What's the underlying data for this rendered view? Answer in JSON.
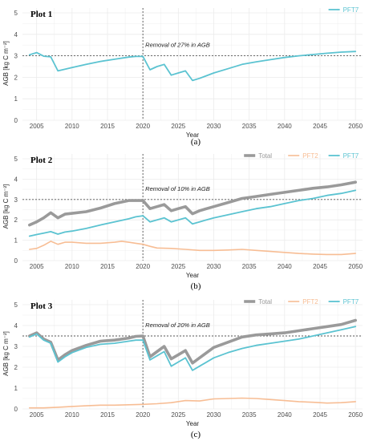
{
  "colors": {
    "Total": "#9a9a9a",
    "PFT2": "#f7bd94",
    "PFT7": "#5bc3d1",
    "grid": "#ebebeb",
    "ref": "#555555"
  },
  "chart_data": [
    {
      "type": "line",
      "title": "Plot 1",
      "caption": "(a)",
      "annotation": "Removal of 27% in AGB",
      "xlabel": "Year",
      "ylabel": "AGB [kg C m⁻²]",
      "xlim": [
        2003,
        2051
      ],
      "ylim": [
        0,
        5
      ],
      "xticks": [
        2005,
        2010,
        2015,
        2020,
        2025,
        2030,
        2035,
        2040,
        2045,
        2050
      ],
      "yticks": [
        0,
        1,
        2,
        3,
        4,
        5
      ],
      "hline": 3.0,
      "vline": 2020,
      "legend": "top-right",
      "series": [
        {
          "name": "PFT7",
          "x": [
            2004,
            2005,
            2006,
            2007,
            2008,
            2010,
            2012,
            2014,
            2016,
            2018,
            2019,
            2020,
            2021,
            2022,
            2023,
            2024,
            2025,
            2026,
            2027,
            2028,
            2030,
            2032,
            2034,
            2036,
            2038,
            2040,
            2042,
            2044,
            2046,
            2048,
            2050
          ],
          "y": [
            3.05,
            3.15,
            2.98,
            2.95,
            2.3,
            2.45,
            2.6,
            2.74,
            2.84,
            2.94,
            2.97,
            2.97,
            2.35,
            2.5,
            2.6,
            2.1,
            2.2,
            2.3,
            1.85,
            1.95,
            2.2,
            2.4,
            2.6,
            2.72,
            2.82,
            2.92,
            3.0,
            3.06,
            3.12,
            3.17,
            3.2
          ]
        }
      ]
    },
    {
      "type": "line",
      "title": "Plot 2",
      "caption": "(b)",
      "annotation": "Removal of 10% in AGB",
      "xlabel": "Year",
      "ylabel": "AGB [kg C m⁻²]",
      "xlim": [
        2003,
        2051
      ],
      "ylim": [
        0,
        5
      ],
      "xticks": [
        2005,
        2010,
        2015,
        2020,
        2025,
        2030,
        2035,
        2040,
        2045,
        2050
      ],
      "yticks": [
        0,
        1,
        2,
        3,
        4,
        5
      ],
      "hline": 3.0,
      "vline": 2020,
      "legend": "top-right",
      "series": [
        {
          "name": "Total",
          "x": [
            2004,
            2005,
            2006,
            2007,
            2008,
            2009,
            2010,
            2012,
            2014,
            2016,
            2018,
            2019,
            2020,
            2021,
            2022,
            2023,
            2024,
            2025,
            2026,
            2027,
            2028,
            2030,
            2032,
            2034,
            2036,
            2038,
            2040,
            2042,
            2044,
            2046,
            2048,
            2050
          ],
          "y": [
            1.75,
            1.9,
            2.1,
            2.35,
            2.1,
            2.28,
            2.32,
            2.4,
            2.58,
            2.8,
            2.95,
            2.95,
            2.95,
            2.55,
            2.65,
            2.75,
            2.45,
            2.55,
            2.65,
            2.3,
            2.45,
            2.65,
            2.85,
            3.05,
            3.15,
            3.25,
            3.35,
            3.45,
            3.55,
            3.62,
            3.72,
            3.85
          ]
        },
        {
          "name": "PFT2",
          "x": [
            2004,
            2005,
            2006,
            2007,
            2008,
            2009,
            2010,
            2012,
            2014,
            2016,
            2017,
            2018,
            2019,
            2020,
            2021,
            2022,
            2024,
            2026,
            2028,
            2030,
            2032,
            2034,
            2036,
            2038,
            2040,
            2042,
            2044,
            2046,
            2048,
            2050
          ],
          "y": [
            0.55,
            0.6,
            0.75,
            0.95,
            0.8,
            0.9,
            0.9,
            0.85,
            0.85,
            0.9,
            0.95,
            0.9,
            0.85,
            0.8,
            0.7,
            0.62,
            0.6,
            0.55,
            0.5,
            0.5,
            0.52,
            0.55,
            0.5,
            0.45,
            0.4,
            0.35,
            0.32,
            0.3,
            0.3,
            0.35
          ]
        },
        {
          "name": "PFT7",
          "x": [
            2004,
            2005,
            2006,
            2007,
            2008,
            2009,
            2010,
            2012,
            2014,
            2016,
            2018,
            2019,
            2020,
            2021,
            2022,
            2023,
            2024,
            2025,
            2026,
            2027,
            2028,
            2030,
            2032,
            2034,
            2036,
            2038,
            2040,
            2042,
            2044,
            2046,
            2048,
            2050
          ],
          "y": [
            1.2,
            1.28,
            1.35,
            1.42,
            1.3,
            1.4,
            1.45,
            1.58,
            1.75,
            1.9,
            2.05,
            2.15,
            2.2,
            1.9,
            2.0,
            2.1,
            1.9,
            2.0,
            2.1,
            1.8,
            1.9,
            2.1,
            2.25,
            2.4,
            2.55,
            2.65,
            2.8,
            2.95,
            3.05,
            3.2,
            3.3,
            3.45
          ]
        }
      ]
    },
    {
      "type": "line",
      "title": "Plot 3",
      "caption": "(c)",
      "annotation": "Removal of 20% in AGB",
      "xlabel": "Year",
      "ylabel": "AGB [kg C m⁻²]",
      "xlim": [
        2003,
        2051
      ],
      "ylim": [
        0,
        5
      ],
      "xticks": [
        2005,
        2010,
        2015,
        2020,
        2025,
        2030,
        2035,
        2040,
        2045,
        2050
      ],
      "yticks": [
        0,
        1,
        2,
        3,
        4,
        5
      ],
      "hline": 3.5,
      "vline": 2020,
      "legend": "top-right",
      "series": [
        {
          "name": "Total",
          "x": [
            2004,
            2005,
            2006,
            2007,
            2008,
            2009,
            2010,
            2012,
            2014,
            2016,
            2018,
            2019,
            2020,
            2021,
            2022,
            2023,
            2024,
            2025,
            2026,
            2027,
            2028,
            2030,
            2032,
            2034,
            2036,
            2038,
            2040,
            2042,
            2044,
            2046,
            2048,
            2050
          ],
          "y": [
            3.5,
            3.65,
            3.35,
            3.2,
            2.35,
            2.6,
            2.8,
            3.05,
            3.25,
            3.3,
            3.4,
            3.48,
            3.5,
            2.5,
            2.75,
            3.0,
            2.4,
            2.6,
            2.8,
            2.2,
            2.45,
            2.95,
            3.2,
            3.45,
            3.55,
            3.6,
            3.65,
            3.75,
            3.85,
            3.95,
            4.05,
            4.25
          ]
        },
        {
          "name": "PFT2",
          "x": [
            2004,
            2006,
            2008,
            2010,
            2012,
            2014,
            2016,
            2018,
            2020,
            2022,
            2024,
            2026,
            2028,
            2030,
            2032,
            2034,
            2036,
            2038,
            2040,
            2042,
            2044,
            2046,
            2048,
            2050
          ],
          "y": [
            0.05,
            0.05,
            0.08,
            0.12,
            0.15,
            0.18,
            0.18,
            0.2,
            0.22,
            0.25,
            0.3,
            0.4,
            0.38,
            0.48,
            0.5,
            0.52,
            0.5,
            0.45,
            0.4,
            0.35,
            0.32,
            0.28,
            0.3,
            0.35
          ]
        },
        {
          "name": "PFT7",
          "x": [
            2004,
            2005,
            2006,
            2007,
            2008,
            2009,
            2010,
            2012,
            2014,
            2016,
            2018,
            2019,
            2020,
            2021,
            2022,
            2023,
            2024,
            2025,
            2026,
            2027,
            2028,
            2030,
            2032,
            2034,
            2036,
            2038,
            2040,
            2042,
            2044,
            2046,
            2048,
            2050
          ],
          "y": [
            3.45,
            3.6,
            3.3,
            3.15,
            2.25,
            2.5,
            2.7,
            2.95,
            3.1,
            3.15,
            3.25,
            3.3,
            3.3,
            2.35,
            2.55,
            2.75,
            2.05,
            2.25,
            2.45,
            1.85,
            2.05,
            2.45,
            2.7,
            2.9,
            3.05,
            3.15,
            3.25,
            3.35,
            3.5,
            3.65,
            3.8,
            3.95
          ]
        }
      ]
    }
  ]
}
